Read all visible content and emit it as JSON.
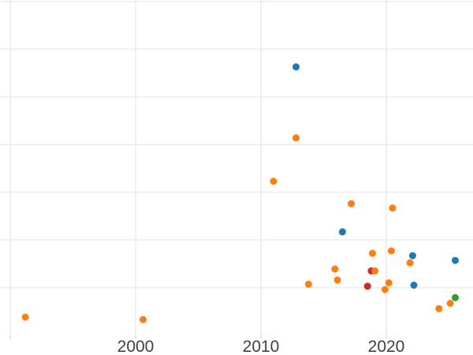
{
  "chart_data": {
    "type": "scatter",
    "title": "",
    "xlabel": "",
    "ylabel": "",
    "legend": "none",
    "grid": true,
    "x_axis": {
      "visible_tick_labels": [
        "2000",
        "2010",
        "2020"
      ],
      "ticks": [
        {
          "year": 1990,
          "label": ""
        },
        {
          "year": 2000,
          "label": "2000"
        },
        {
          "year": 2010,
          "label": "2010"
        },
        {
          "year": 2020,
          "label": "2020"
        }
      ],
      "x_range_years_visible": [
        1989.2,
        2026.9
      ]
    },
    "y_axis": {
      "tick_labels_visible": false,
      "note": "y-axis tick labels are cropped out of the screenshot; y values below are expressed in horizontal-gridline units above the bottom edge of the plot",
      "gridline_units": [
        1,
        2,
        3,
        4,
        5,
        6,
        7
      ]
    },
    "series": [
      {
        "name": "blue",
        "color": "#1f77b4",
        "points": [
          {
            "x": 2012.8,
            "y": 5.63
          },
          {
            "x": 2016.5,
            "y": 2.17
          },
          {
            "x": 2022.1,
            "y": 1.67
          },
          {
            "x": 2025.5,
            "y": 1.57
          },
          {
            "x": 2022.2,
            "y": 1.05
          }
        ]
      },
      {
        "name": "red",
        "color": "#d62728",
        "points": [
          {
            "x": 2018.8,
            "y": 1.35
          },
          {
            "x": 2018.5,
            "y": 1.03
          }
        ]
      },
      {
        "name": "orange",
        "color": "#ff7f0e",
        "points": [
          {
            "x": 2012.8,
            "y": 4.14
          },
          {
            "x": 2011.0,
            "y": 3.23
          },
          {
            "x": 2017.2,
            "y": 2.76
          },
          {
            "x": 2020.5,
            "y": 2.67
          },
          {
            "x": 2018.9,
            "y": 1.72
          },
          {
            "x": 2020.4,
            "y": 1.77
          },
          {
            "x": 2021.9,
            "y": 1.52
          },
          {
            "x": 2015.9,
            "y": 1.39
          },
          {
            "x": 2019.1,
            "y": 1.35
          },
          {
            "x": 2016.1,
            "y": 1.16
          },
          {
            "x": 2013.8,
            "y": 1.07
          },
          {
            "x": 2020.2,
            "y": 1.1
          },
          {
            "x": 2019.9,
            "y": 0.96
          },
          {
            "x": 2025.1,
            "y": 0.67
          },
          {
            "x": 2024.2,
            "y": 0.56
          },
          {
            "x": 1991.2,
            "y": 0.38
          },
          {
            "x": 2000.6,
            "y": 0.33
          }
        ]
      },
      {
        "name": "green",
        "color": "#2ca02c",
        "points": [
          {
            "x": 2025.5,
            "y": 0.79
          }
        ]
      }
    ]
  },
  "style": {
    "background": "#ffffff",
    "gridline_color": "#eaeaea",
    "tick_color": "#d6d6d6",
    "tick_label_color": "#414141",
    "marker_radius": 4.5
  }
}
